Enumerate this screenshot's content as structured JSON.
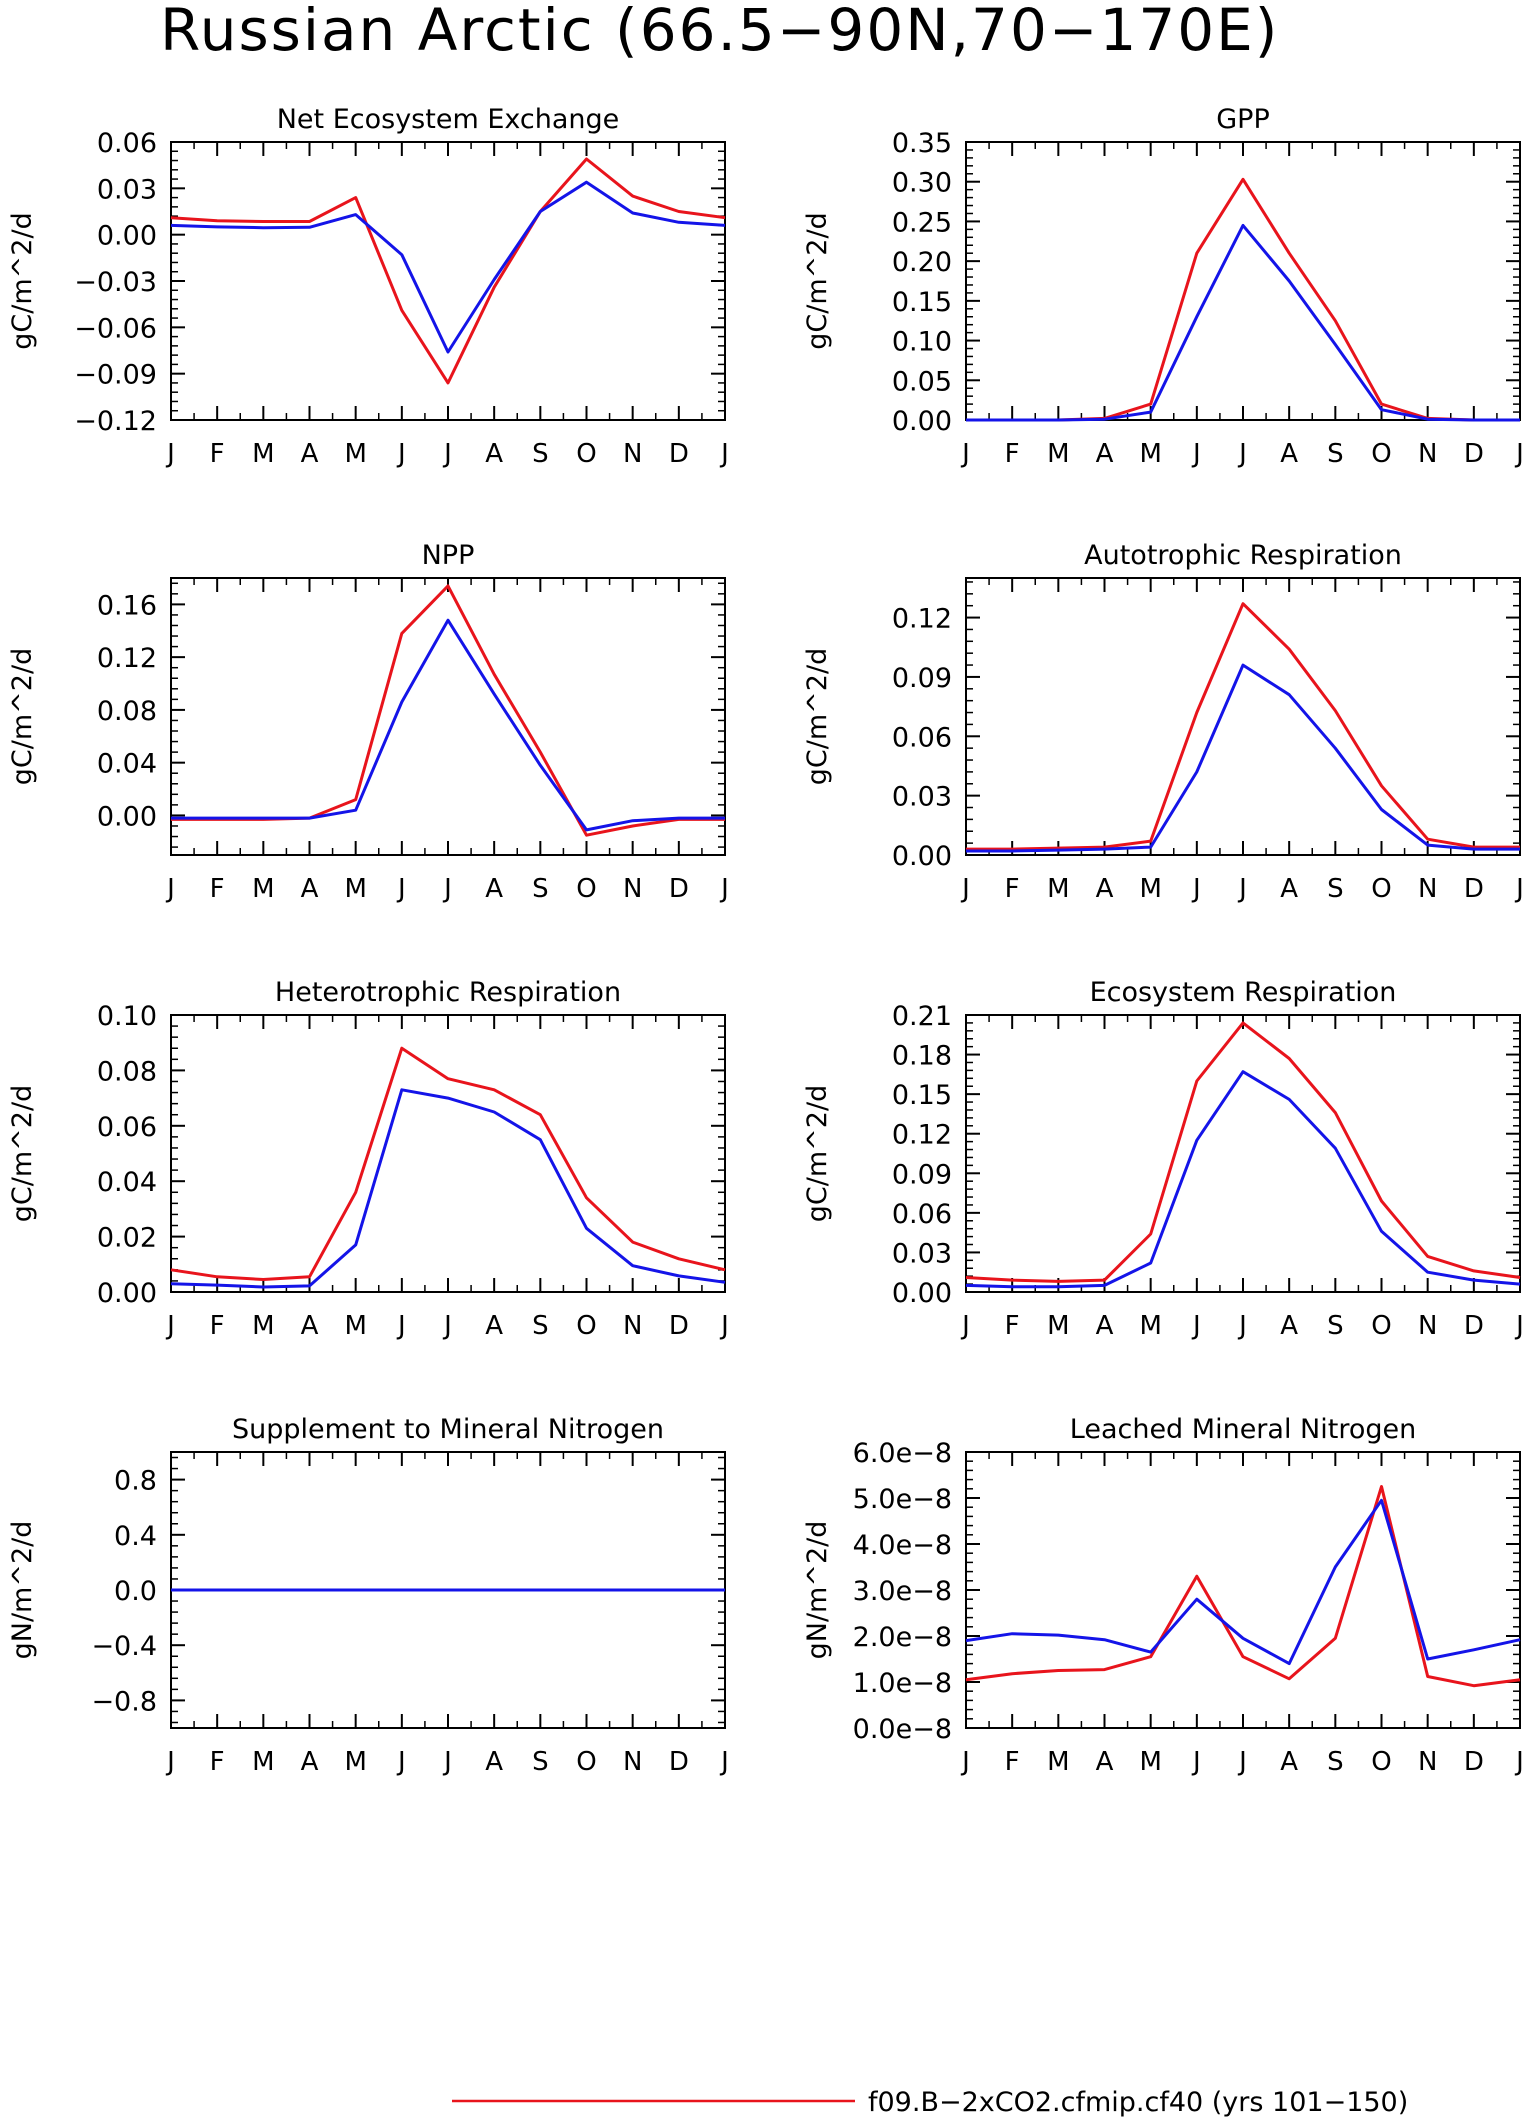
{
  "figure": {
    "title": "Russian Arctic (66.5−90N,70−170E)",
    "legend_label": "f09.B−2xCO2.cfmip.cf40 (yrs 101−150)"
  },
  "colors": {
    "case1": "#e8141c",
    "case2": "#1414e8",
    "axis": "#000000"
  },
  "chart_data": [
    {
      "type": "line",
      "title": "Net Ecosystem Exchange",
      "ylabel": "gC/m^2/d",
      "x": [
        "J",
        "F",
        "M",
        "A",
        "M",
        "J",
        "J",
        "A",
        "S",
        "O",
        "N",
        "D",
        "J"
      ],
      "ylim": [
        -0.12,
        0.06
      ],
      "yticks": [
        -0.12,
        -0.09,
        -0.06,
        -0.03,
        0.0,
        0.03,
        0.06
      ],
      "ytick_labels": [
        "−0.12",
        "−0.09",
        "−0.06",
        "−0.03",
        "0.00",
        "0.03",
        "0.06"
      ],
      "series": [
        {
          "values": [
            0.011,
            0.009,
            0.0085,
            0.0085,
            0.024,
            -0.049,
            -0.096,
            -0.034,
            0.015,
            0.049,
            0.025,
            0.015,
            0.011
          ]
        },
        {
          "values": [
            0.006,
            0.005,
            0.0045,
            0.0048,
            0.013,
            -0.013,
            -0.076,
            -0.029,
            0.015,
            0.034,
            0.014,
            0.008,
            0.006
          ]
        }
      ]
    },
    {
      "type": "line",
      "title": "GPP",
      "ylabel": "gC/m^2/d",
      "x": [
        "J",
        "F",
        "M",
        "A",
        "M",
        "J",
        "J",
        "A",
        "S",
        "O",
        "N",
        "D",
        "J"
      ],
      "ylim": [
        0.0,
        0.35
      ],
      "yticks": [
        0.0,
        0.05,
        0.1,
        0.15,
        0.2,
        0.25,
        0.3,
        0.35
      ],
      "ytick_labels": [
        "0.00",
        "0.05",
        "0.10",
        "0.15",
        "0.20",
        "0.25",
        "0.30",
        "0.35"
      ],
      "series": [
        {
          "values": [
            0.0,
            0.0,
            0.0,
            0.002,
            0.02,
            0.21,
            0.303,
            0.21,
            0.125,
            0.02,
            0.002,
            0.0,
            0.0
          ]
        },
        {
          "values": [
            0.0,
            0.0,
            0.0,
            0.001,
            0.01,
            0.13,
            0.245,
            0.175,
            0.095,
            0.013,
            0.001,
            0.0,
            0.0
          ]
        }
      ]
    },
    {
      "type": "line",
      "title": "NPP",
      "ylabel": "gC/m^2/d",
      "x": [
        "J",
        "F",
        "M",
        "A",
        "M",
        "J",
        "J",
        "A",
        "S",
        "O",
        "N",
        "D",
        "J"
      ],
      "ylim": [
        -0.03,
        0.18
      ],
      "yticks": [
        0.0,
        0.04,
        0.08,
        0.12,
        0.16
      ],
      "ytick_labels": [
        "0.00",
        "0.04",
        "0.08",
        "0.12",
        "0.16"
      ],
      "series": [
        {
          "values": [
            -0.003,
            -0.003,
            -0.003,
            -0.002,
            0.012,
            0.138,
            0.174,
            0.107,
            0.048,
            -0.015,
            -0.008,
            -0.003,
            -0.003
          ]
        },
        {
          "values": [
            -0.002,
            -0.002,
            -0.002,
            -0.002,
            0.004,
            0.086,
            0.148,
            0.092,
            0.038,
            -0.011,
            -0.004,
            -0.002,
            -0.002
          ]
        }
      ]
    },
    {
      "type": "line",
      "title": "Autotrophic Respiration",
      "ylabel": "gC/m^2/d",
      "x": [
        "J",
        "F",
        "M",
        "A",
        "M",
        "J",
        "J",
        "A",
        "S",
        "O",
        "N",
        "D",
        "J"
      ],
      "ylim": [
        0.0,
        0.14
      ],
      "yticks": [
        0.0,
        0.03,
        0.06,
        0.09,
        0.12
      ],
      "ytick_labels": [
        "0.00",
        "0.03",
        "0.06",
        "0.09",
        "0.12"
      ],
      "series": [
        {
          "values": [
            0.003,
            0.003,
            0.0035,
            0.004,
            0.007,
            0.072,
            0.127,
            0.104,
            0.073,
            0.035,
            0.008,
            0.004,
            0.004
          ]
        },
        {
          "values": [
            0.002,
            0.002,
            0.0025,
            0.003,
            0.004,
            0.042,
            0.096,
            0.081,
            0.054,
            0.023,
            0.005,
            0.003,
            0.003
          ]
        }
      ]
    },
    {
      "type": "line",
      "title": "Heterotrophic Respiration",
      "ylabel": "gC/m^2/d",
      "x": [
        "J",
        "F",
        "M",
        "A",
        "M",
        "J",
        "J",
        "A",
        "S",
        "O",
        "N",
        "D",
        "J"
      ],
      "ylim": [
        0.0,
        0.1
      ],
      "yticks": [
        0.0,
        0.02,
        0.04,
        0.06,
        0.08,
        0.1
      ],
      "ytick_labels": [
        "0.00",
        "0.02",
        "0.04",
        "0.06",
        "0.08",
        "0.10"
      ],
      "series": [
        {
          "values": [
            0.008,
            0.0055,
            0.0045,
            0.0055,
            0.036,
            0.088,
            0.077,
            0.073,
            0.064,
            0.034,
            0.018,
            0.012,
            0.008
          ]
        },
        {
          "values": [
            0.003,
            0.0025,
            0.0018,
            0.0022,
            0.017,
            0.073,
            0.07,
            0.065,
            0.055,
            0.023,
            0.0095,
            0.0058,
            0.0035
          ]
        }
      ]
    },
    {
      "type": "line",
      "title": "Ecosystem Respiration",
      "ylabel": "gC/m^2/d",
      "x": [
        "J",
        "F",
        "M",
        "A",
        "M",
        "J",
        "J",
        "A",
        "S",
        "O",
        "N",
        "D",
        "J"
      ],
      "ylim": [
        0.0,
        0.21
      ],
      "yticks": [
        0.0,
        0.03,
        0.06,
        0.09,
        0.12,
        0.15,
        0.18,
        0.21
      ],
      "ytick_labels": [
        "0.00",
        "0.03",
        "0.06",
        "0.09",
        "0.12",
        "0.15",
        "0.18",
        "0.21"
      ],
      "series": [
        {
          "values": [
            0.011,
            0.009,
            0.008,
            0.009,
            0.044,
            0.16,
            0.204,
            0.177,
            0.136,
            0.069,
            0.027,
            0.016,
            0.011
          ]
        },
        {
          "values": [
            0.005,
            0.004,
            0.004,
            0.005,
            0.022,
            0.115,
            0.167,
            0.146,
            0.109,
            0.046,
            0.015,
            0.009,
            0.006
          ]
        }
      ]
    },
    {
      "type": "line",
      "title": "Supplement to Mineral Nitrogen",
      "ylabel": "gN/m^2/d",
      "x": [
        "J",
        "F",
        "M",
        "A",
        "M",
        "J",
        "J",
        "A",
        "S",
        "O",
        "N",
        "D",
        "J"
      ],
      "ylim": [
        -1.0,
        1.0
      ],
      "yticks": [
        -0.8,
        -0.4,
        0.0,
        0.4,
        0.8
      ],
      "ytick_labels": [
        "−0.8",
        "−0.4",
        "0.0",
        "0.4",
        "0.8"
      ],
      "series": [
        {
          "values": [
            0,
            0,
            0,
            0,
            0,
            0,
            0,
            0,
            0,
            0,
            0,
            0,
            0
          ]
        },
        {
          "values": [
            0,
            0,
            0,
            0,
            0,
            0,
            0,
            0,
            0,
            0,
            0,
            0,
            0
          ]
        }
      ]
    },
    {
      "type": "line",
      "title": "Leached Mineral Nitrogen",
      "ylabel": "gN/m^2/d",
      "x": [
        "J",
        "F",
        "M",
        "A",
        "M",
        "J",
        "J",
        "A",
        "S",
        "O",
        "N",
        "D",
        "J"
      ],
      "ylim": [
        0.0,
        6e-08
      ],
      "yticks": [
        0.0,
        1e-08,
        2e-08,
        3e-08,
        4e-08,
        5e-08,
        6e-08
      ],
      "ytick_labels": [
        "0.0e−8",
        "1.0e−8",
        "2.0e−8",
        "3.0e−8",
        "4.0e−8",
        "5.0e−8",
        "6.0e−8"
      ],
      "series": [
        {
          "values": [
            1.05e-08,
            1.18e-08,
            1.25e-08,
            1.27e-08,
            1.55e-08,
            3.3e-08,
            1.55e-08,
            1.07e-08,
            1.95e-08,
            5.25e-08,
            1.12e-08,
            9.2e-09,
            1.05e-08
          ]
        },
        {
          "values": [
            1.9e-08,
            2.05e-08,
            2.02e-08,
            1.92e-08,
            1.65e-08,
            2.8e-08,
            1.95e-08,
            1.4e-08,
            3.5e-08,
            4.95e-08,
            1.5e-08,
            1.7e-08,
            1.92e-08
          ]
        }
      ]
    }
  ]
}
